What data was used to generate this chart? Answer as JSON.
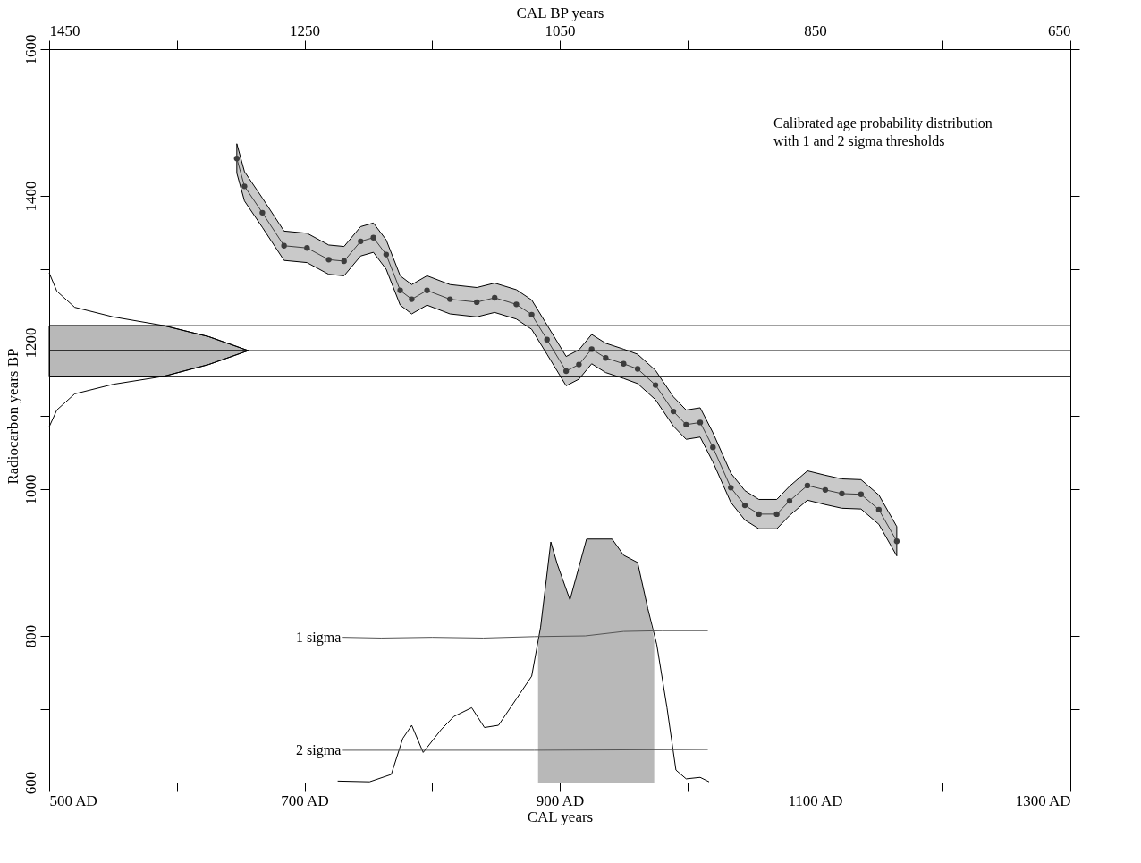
{
  "chart_data": {
    "type": "line",
    "xlabel": "CAL years",
    "x2label": "CAL BP years",
    "ylabel": "Radiocarbon years BP",
    "xlim": [
      500,
      1300
    ],
    "x2lim": [
      1450,
      650
    ],
    "ylim": [
      600,
      1600
    ],
    "xticks": [
      {
        "value": 500,
        "label": "500 AD"
      },
      {
        "value": 600,
        "label": null
      },
      {
        "value": 700,
        "label": "700 AD"
      },
      {
        "value": 800,
        "label": null
      },
      {
        "value": 900,
        "label": "900 AD"
      },
      {
        "value": 1000,
        "label": null
      },
      {
        "value": 1100,
        "label": "1100 AD"
      },
      {
        "value": 1200,
        "label": null
      },
      {
        "value": 1300,
        "label": "1300 AD"
      }
    ],
    "x2ticks": [
      1450,
      {
        "value": 1350,
        "label": null
      },
      1250,
      {
        "value": 1150,
        "label": null
      },
      1050,
      {
        "value": 950,
        "label": null
      },
      850,
      {
        "value": 750,
        "label": null
      },
      650
    ],
    "yticks": [
      600,
      {
        "value": 700,
        "label": null
      },
      800,
      {
        "value": 900,
        "label": null
      },
      1000,
      {
        "value": 1100,
        "label": null
      },
      1200,
      {
        "value": 1300,
        "label": null
      },
      1400,
      {
        "value": 1500,
        "label": null
      },
      1600
    ],
    "grid": false,
    "ref_lines": [
      {
        "axis": "y",
        "value": 1223,
        "color": "#000000"
      },
      {
        "axis": "y",
        "value": 1189,
        "color": "#000000"
      },
      {
        "axis": "y",
        "value": 1154,
        "color": "#000000"
      }
    ],
    "annotations": [
      "Calibrated age probability distribution\nwith 1 and 2 sigma thresholds",
      {
        "text": "1 sigma",
        "x": 730,
        "y": 798
      },
      {
        "text": "2 sigma",
        "x": 730,
        "y": 644
      }
    ],
    "series": [
      {
        "marker": "circle",
        "color": "#3d3d3d",
        "x": [
          647,
          653,
          667,
          684,
          702,
          719,
          731,
          744,
          754,
          764,
          775,
          784,
          796,
          814,
          835,
          849,
          866,
          878,
          890,
          905,
          915,
          925,
          936,
          950,
          961,
          975,
          989,
          999,
          1010,
          1020,
          1034,
          1045,
          1056,
          1070,
          1080,
          1094,
          1108,
          1121,
          1136,
          1150,
          1164
        ],
        "values": [
          1451,
          1413,
          1377,
          1332,
          1329,
          1313,
          1311,
          1338,
          1343,
          1320,
          1271,
          1259,
          1271,
          1259,
          1255,
          1261,
          1252,
          1238,
          1204,
          1161,
          1170,
          1191,
          1179,
          1171,
          1164,
          1142,
          1106,
          1088,
          1091,
          1057,
          1002,
          978,
          966,
          966,
          984,
          1005,
          999,
          994,
          993,
          972,
          929
        ],
        "lower": [
          1431,
          1393,
          1357,
          1312,
          1309,
          1293,
          1291,
          1318,
          1323,
          1300,
          1251,
          1239,
          1251,
          1239,
          1235,
          1241,
          1232,
          1218,
          1184,
          1141,
          1150,
          1171,
          1159,
          1151,
          1144,
          1122,
          1086,
          1068,
          1071,
          1037,
          982,
          958,
          946,
          946,
          964,
          985,
          979,
          974,
          973,
          952,
          909
        ],
        "upper": [
          1471,
          1433,
          1397,
          1352,
          1349,
          1333,
          1331,
          1358,
          1363,
          1340,
          1291,
          1279,
          1291,
          1279,
          1275,
          1281,
          1272,
          1258,
          1224,
          1181,
          1190,
          1211,
          1199,
          1191,
          1184,
          1162,
          1126,
          1108,
          1111,
          1077,
          1022,
          998,
          986,
          986,
          1004,
          1025,
          1019,
          1014,
          1013,
          992,
          949
        ]
      },
      {
        "color": "#000000",
        "x": [
          500,
          590,
          625,
          656
        ],
        "values": [
          1189,
          1189,
          1189,
          1189
        ],
        "lower": [
          1154,
          1154,
          1170,
          1189
        ],
        "upper": [
          1223,
          1223,
          1208,
          1189
        ]
      },
      {
        "color": "#000000",
        "x": [
          500,
          506,
          520,
          550,
          590,
          625,
          656,
          625,
          590,
          550,
          520,
          506,
          500
        ],
        "values": [
          1295,
          1270,
          1248,
          1235,
          1223,
          1208,
          1189,
          1170,
          1154,
          1143,
          1130,
          1108,
          1085
        ]
      },
      {
        "type": "area",
        "color": "#b8b8b8",
        "x": [
          883,
          885,
          893,
          898,
          908,
          921,
          941,
          950,
          961,
          969,
          974
        ],
        "values": [
          790,
          812,
          928,
          898,
          849,
          932,
          932,
          910,
          900,
          837,
          795
        ]
      },
      {
        "color": "#000000",
        "x": [
          726,
          751,
          768,
          777,
          784,
          793,
          807,
          817,
          831,
          841,
          852,
          866,
          878,
          885,
          893,
          898,
          908,
          921,
          941,
          950,
          961,
          969,
          976,
          984,
          991,
          999,
          1010,
          1017
        ],
        "values": [
          602,
          601,
          611,
          660,
          678,
          641,
          672,
          690,
          702,
          675,
          678,
          714,
          745,
          812,
          928,
          898,
          849,
          932,
          932,
          910,
          900,
          837,
          788,
          702,
          617,
          605,
          607,
          601
        ]
      },
      {
        "color": "#555555",
        "x": [
          730,
          760,
          800,
          840,
          880,
          920,
          950,
          980,
          1016
        ],
        "values": [
          798,
          797,
          798,
          797,
          799,
          800,
          806,
          807,
          807
        ]
      },
      {
        "color": "#555555",
        "x": [
          730,
          880,
          1016
        ],
        "values": [
          644,
          644,
          645
        ]
      }
    ]
  }
}
